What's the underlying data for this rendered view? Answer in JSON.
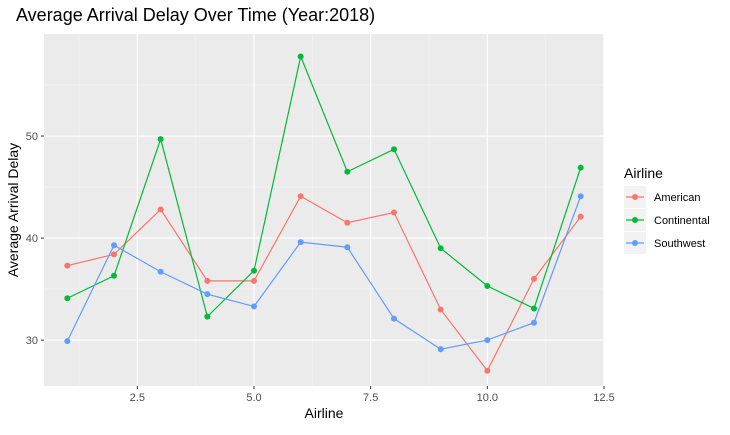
{
  "chart_data": {
    "type": "line",
    "title": "Average Arrival Delay Over Time (Year:2018)",
    "xlabel": "Airline",
    "ylabel": "Average Arrival Delay",
    "x": [
      1,
      2,
      3,
      4,
      5,
      6,
      7,
      8,
      9,
      10,
      11,
      12
    ],
    "xlim": [
      0.5,
      12.5
    ],
    "ylim": [
      25.5,
      60
    ],
    "x_ticks": [
      2.5,
      5.0,
      7.5,
      10.0,
      12.5
    ],
    "x_tick_labels": [
      "2.5",
      "5.0",
      "7.5",
      "10.0",
      "12.5"
    ],
    "y_ticks": [
      30,
      40,
      50
    ],
    "y_tick_labels": [
      "30",
      "40",
      "50"
    ],
    "grid": true,
    "legend": {
      "title": "Airline",
      "position": "right"
    },
    "series": [
      {
        "name": "American",
        "color": "#F8766D",
        "values": [
          37.3,
          38.4,
          42.8,
          35.8,
          35.8,
          44.1,
          41.5,
          42.5,
          33.0,
          27.0,
          36.0,
          42.1
        ]
      },
      {
        "name": "Continental",
        "color": "#00BA38",
        "values": [
          34.1,
          36.3,
          49.7,
          32.3,
          36.8,
          57.8,
          46.5,
          48.7,
          39.0,
          35.3,
          33.1,
          46.9
        ]
      },
      {
        "name": "Southwest",
        "color": "#619CFF",
        "values": [
          29.9,
          39.3,
          36.7,
          34.5,
          33.3,
          39.6,
          39.1,
          32.1,
          29.1,
          30.0,
          31.7,
          44.1
        ]
      }
    ]
  }
}
